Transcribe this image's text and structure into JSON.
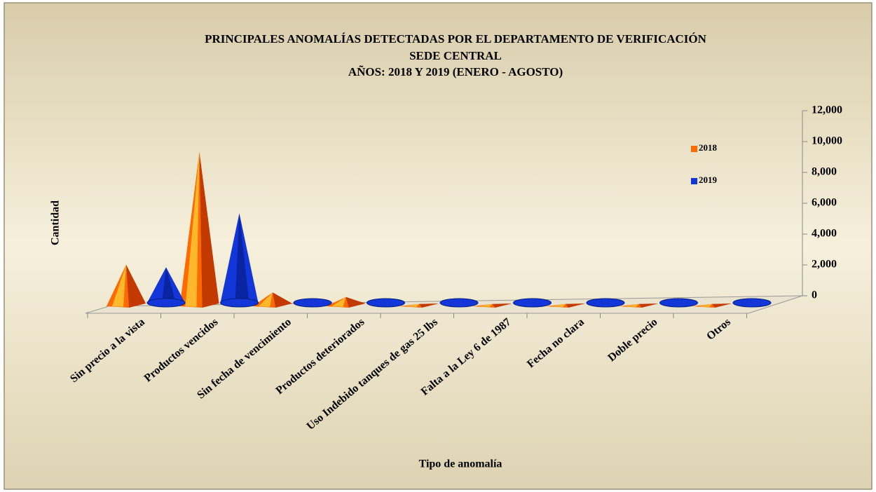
{
  "chart_data": {
    "type": "pyramid3d",
    "title": [
      "PRINCIPALES ANOMALÍAS DETECTADAS POR EL DEPARTAMENTO DE VERIFICACIÓN",
      "SEDE CENTRAL",
      "AÑOS: 2018 Y 2019  (ENERO - AGOSTO)"
    ],
    "x_label": "Tipo de anomalía",
    "y_label": "Cantidad",
    "categories": [
      "Sin precio a la vista",
      "Productos vencidos",
      "Sin fecha de vencimiento",
      "Productos deteriorados",
      "Uso Indebido tanques de gas 25 lbs",
      "Falta a la Ley 6 de 1987",
      "Fecha no clara",
      "Doble precio",
      "Otros"
    ],
    "series": [
      {
        "name": "2018",
        "color": "#ff6a00",
        "values": [
          2700,
          10000,
          900,
          600,
          150,
          150,
          150,
          150,
          150
        ]
      },
      {
        "name": "2019",
        "color": "#1236d8",
        "values": [
          2300,
          5800,
          200,
          100,
          50,
          50,
          50,
          50,
          50
        ]
      }
    ],
    "ylim": [
      0,
      12000
    ],
    "yticks": [
      0,
      {
        "value": 2000,
        "label": "2,000"
      },
      {
        "value": 4000,
        "label": "4,000"
      },
      {
        "value": 6000,
        "label": "6,000"
      },
      {
        "value": 8000,
        "label": "8,000"
      },
      {
        "value": 10000,
        "label": "10,000"
      },
      {
        "value": 12000,
        "label": "12,000"
      }
    ],
    "legend": "right"
  }
}
